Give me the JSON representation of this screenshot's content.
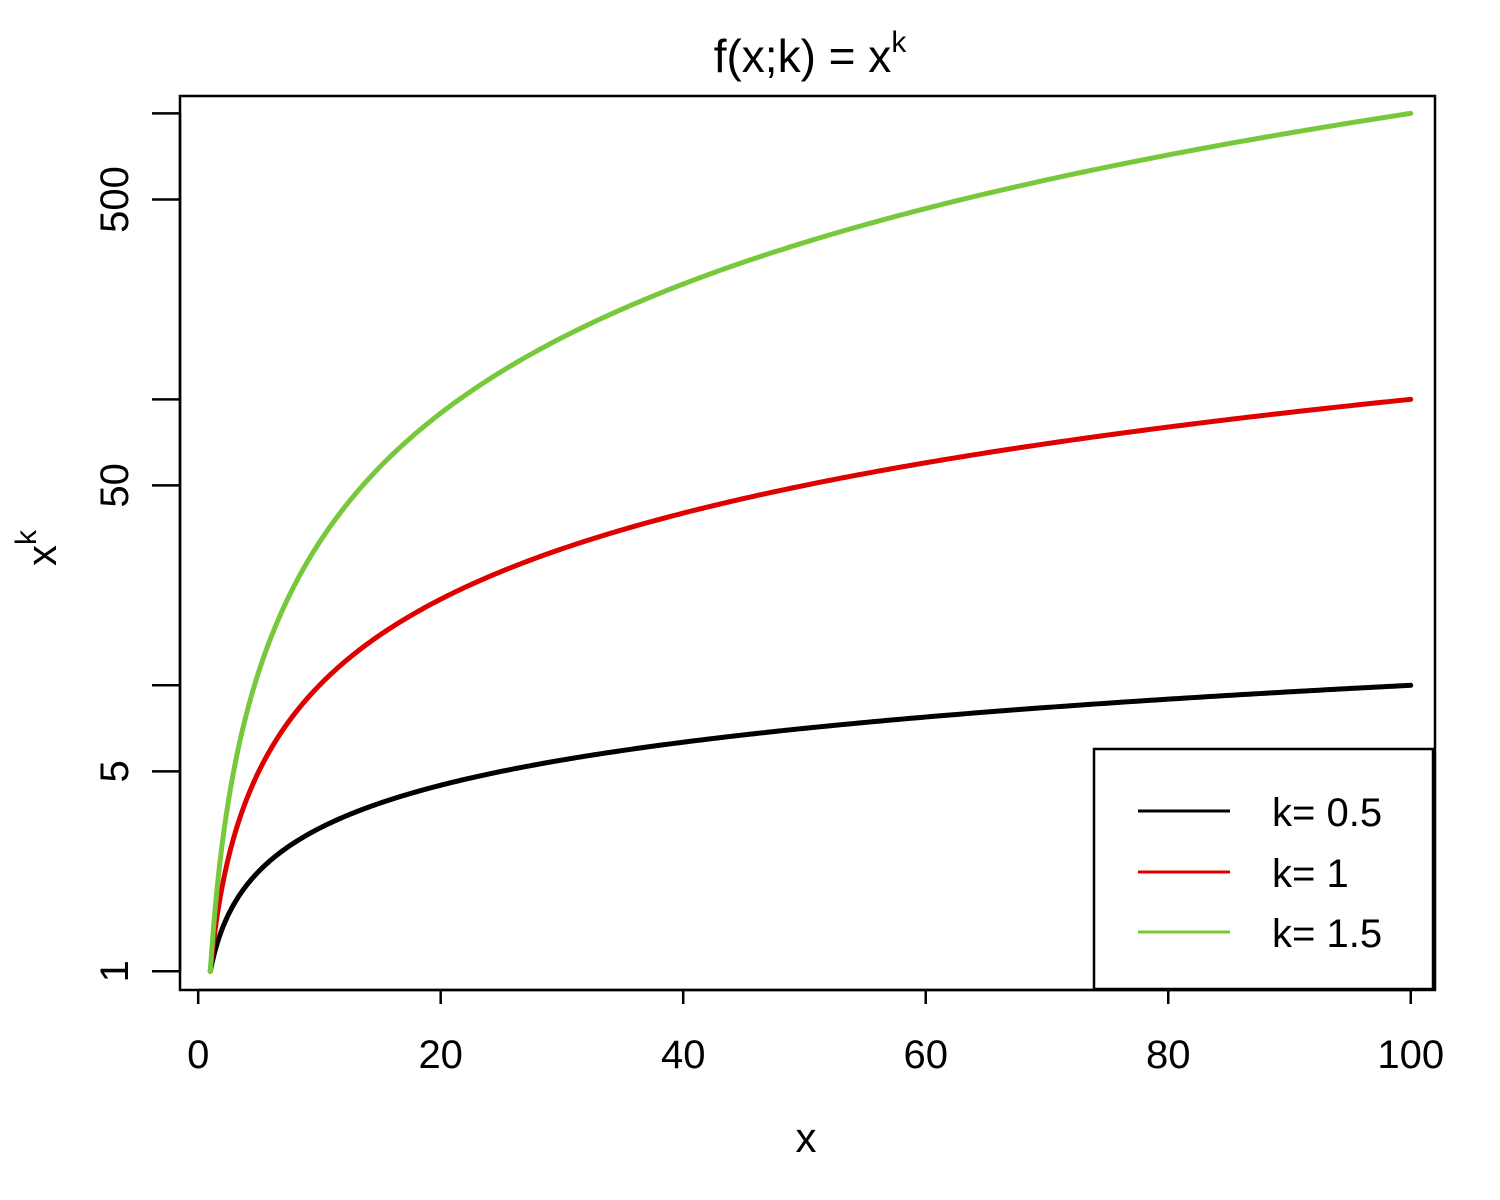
{
  "chart_data": {
    "type": "line",
    "title": "f(x;k) = x",
    "title_superscript": "k",
    "xlabel": "x",
    "ylabel": "x",
    "ylabel_superscript": "k",
    "y_scale": "log",
    "xlim": [
      -1.5,
      102
    ],
    "ylim": [
      0.86,
      1150
    ],
    "x_ticks": [
      0,
      20,
      40,
      60,
      80,
      100
    ],
    "x_tick_labels": [
      "0",
      "20",
      "40",
      "60",
      "80",
      "100"
    ],
    "y_ticks": [
      1,
      5,
      10,
      50,
      100,
      500,
      1000
    ],
    "y_tick_labels": [
      "1",
      "5",
      "",
      "50",
      "",
      "500",
      ""
    ],
    "x_range": [
      1,
      100
    ],
    "grid": false,
    "legend_position": "bottom-right",
    "series": [
      {
        "name": "k= 0.5",
        "k": 0.5,
        "color": "#000000",
        "x": [
          1,
          2,
          3,
          5,
          10,
          20,
          30,
          40,
          50,
          60,
          70,
          80,
          90,
          100
        ],
        "y": [
          1,
          1.41,
          1.73,
          2.24,
          3.16,
          4.47,
          5.48,
          6.32,
          7.07,
          7.75,
          8.37,
          8.94,
          9.49,
          10
        ]
      },
      {
        "name": "k= 1",
        "k": 1,
        "color": "#df0000",
        "x": [
          1,
          2,
          3,
          5,
          10,
          20,
          30,
          40,
          50,
          60,
          70,
          80,
          90,
          100
        ],
        "y": [
          1,
          2,
          3,
          5,
          10,
          20,
          30,
          40,
          50,
          60,
          70,
          80,
          90,
          100
        ]
      },
      {
        "name": "k= 1.5",
        "k": 1.5,
        "color": "#77c93b",
        "x": [
          1,
          2,
          3,
          5,
          10,
          20,
          30,
          40,
          50,
          60,
          70,
          80,
          90,
          100
        ],
        "y": [
          1,
          2.83,
          5.2,
          11.18,
          31.62,
          89.44,
          164.3,
          252.98,
          353.55,
          464.76,
          585.66,
          715.54,
          853.81,
          1000
        ]
      }
    ]
  }
}
